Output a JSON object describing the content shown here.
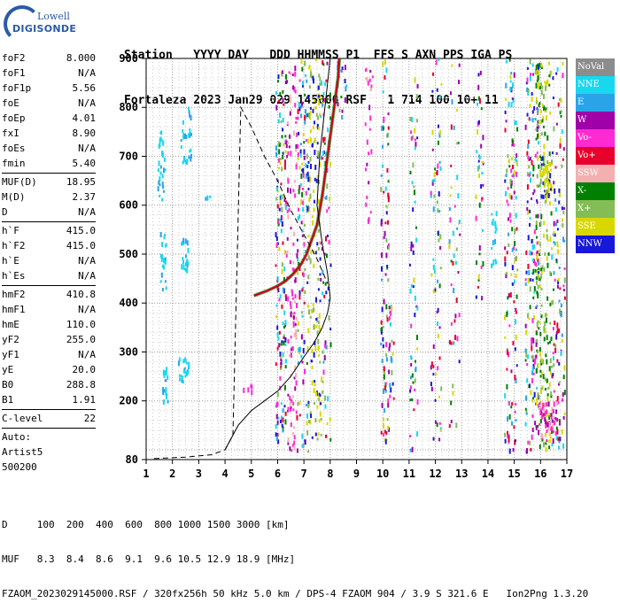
{
  "logo": {
    "line1": "Lowell",
    "line2": "DIGISONDE"
  },
  "header": {
    "line1": "Station   YYYY DAY   DDD HHMMSS P1  FFS S AXN PPS IGA PS",
    "line2": "Fortaleza 2023 Jan29 029 145000 RSF   1 714 100 10+ 11"
  },
  "params": {
    "group1": [
      {
        "k": "foF2",
        "v": "8.000"
      },
      {
        "k": "foF1",
        "v": "N/A"
      },
      {
        "k": "foF1p",
        "v": "5.56"
      },
      {
        "k": "foE",
        "v": "N/A"
      },
      {
        "k": "foEp",
        "v": "4.01"
      },
      {
        "k": "fxI",
        "v": "8.90"
      },
      {
        "k": "foEs",
        "v": "N/A"
      },
      {
        "k": "fmin",
        "v": "5.40"
      }
    ],
    "group2": [
      {
        "k": "MUF(D)",
        "v": "18.95"
      },
      {
        "k": "M(D)",
        "v": "2.37"
      },
      {
        "k": "D",
        "v": "N/A"
      }
    ],
    "group3": [
      {
        "k": "h`F",
        "v": "415.0"
      },
      {
        "k": "h`F2",
        "v": "415.0"
      },
      {
        "k": "h`E",
        "v": "N/A"
      },
      {
        "k": "h`Es",
        "v": "N/A"
      }
    ],
    "group4": [
      {
        "k": "hmF2",
        "v": "410.8"
      },
      {
        "k": "hmF1",
        "v": "N/A"
      },
      {
        "k": "hmE",
        "v": "110.0"
      },
      {
        "k": "yF2",
        "v": "255.0"
      },
      {
        "k": "yF1",
        "v": "N/A"
      },
      {
        "k": "yE",
        "v": "20.0"
      },
      {
        "k": "B0",
        "v": "288.8"
      },
      {
        "k": "B1",
        "v": "1.91"
      }
    ],
    "group5": [
      {
        "k": "C-level",
        "v": "22"
      }
    ],
    "auto": [
      "Auto:",
      "Artist5",
      "500200"
    ]
  },
  "legend": [
    {
      "label": "NoVal",
      "color": "#8c8c8c"
    },
    {
      "label": "NNE",
      "color": "#18d8f0"
    },
    {
      "label": "E",
      "color": "#2aa4e8"
    },
    {
      "label": "W",
      "color": "#a000a8"
    },
    {
      "label": "Vo-",
      "color": "#ff2ad2"
    },
    {
      "label": "Vo+",
      "color": "#e8002c"
    },
    {
      "label": "SSW",
      "color": "#f4b0b0"
    },
    {
      "label": "X-",
      "color": "#008000"
    },
    {
      "label": "X+",
      "color": "#84bc56"
    },
    {
      "label": "SSE",
      "color": "#d8d800"
    },
    {
      "label": "NNW",
      "color": "#1818d8"
    }
  ],
  "footer": {
    "line1": "D     100  200  400  600  800 1000 1500 3000 [km]",
    "line2": "MUF   8.3  8.4  8.6  9.1  9.6 10.5 12.9 18.9 [MHz]",
    "line3": "FZAOM_2023029145000.RSF / 320fx256h 50 kHz 5.0 km / DPS-4 FZAOM 904 / 3.9 S 321.6 E   Ion2Png 1.3.20"
  },
  "chart_data": {
    "type": "scatter",
    "xlim": [
      1,
      17
    ],
    "ylim": [
      80,
      900
    ],
    "xticks": [
      1,
      2,
      3,
      4,
      5,
      6,
      7,
      8,
      9,
      10,
      11,
      12,
      13,
      14,
      15,
      16,
      17
    ],
    "yticks": [
      80,
      200,
      300,
      400,
      500,
      600,
      700,
      800,
      900
    ],
    "grid": true,
    "trace_F2": {
      "x": [
        5.1,
        5.6,
        6.0,
        6.3,
        6.6,
        6.9,
        7.1,
        7.3,
        7.5,
        7.6,
        7.7,
        7.8,
        7.9,
        8.0,
        8.1,
        8.2,
        8.3,
        8.35
      ],
      "y": [
        415,
        425,
        435,
        445,
        460,
        480,
        500,
        530,
        560,
        590,
        620,
        660,
        700,
        740,
        780,
        820,
        860,
        900
      ]
    },
    "profile_solid": {
      "x": [
        4.0,
        4.5,
        5.0,
        5.5,
        6.0,
        6.5,
        7.0,
        7.4,
        7.7,
        7.9,
        8.0,
        7.9,
        7.7,
        7.5,
        7.6,
        8.0
      ],
      "y": [
        100,
        150,
        180,
        200,
        220,
        250,
        290,
        320,
        350,
        380,
        410,
        460,
        520,
        600,
        700,
        900
      ]
    },
    "profile_dashed": {
      "x": [
        1.3,
        2.5,
        3.5,
        4.0,
        4.3,
        4.6,
        5.0,
        5.5,
        6.0,
        6.5,
        7.0,
        7.5,
        7.9
      ],
      "y": [
        82,
        85,
        90,
        100,
        130,
        800,
        760,
        700,
        650,
        590,
        540,
        490,
        440
      ]
    },
    "profile_dashed_top": {
      "x": [
        3.5,
        4.3
      ],
      "y": [
        900,
        900
      ]
    }
  }
}
